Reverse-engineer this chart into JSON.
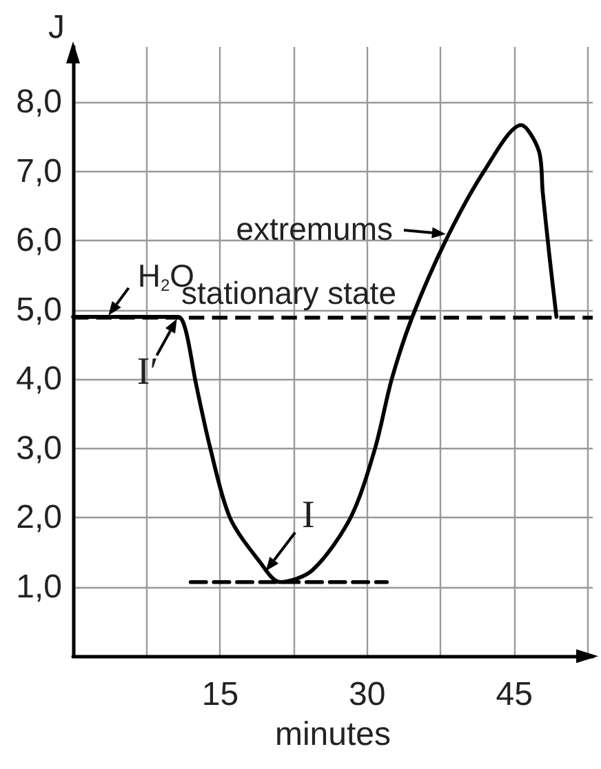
{
  "chart_data": {
    "type": "line",
    "xlabel": "minutes",
    "ylabel": "J",
    "xlim": [
      0,
      53
    ],
    "xticks": [
      {
        "value": 7.5,
        "label": null
      },
      15,
      {
        "value": 22.5,
        "label": null
      },
      30,
      {
        "value": 37.5,
        "label": null
      },
      45,
      {
        "value": 52.5,
        "label": null
      }
    ],
    "ylim": [
      0,
      8.8
    ],
    "yticks": [
      {
        "value": 1,
        "label": "1,0"
      },
      {
        "value": 2,
        "label": "2,0"
      },
      {
        "value": 3,
        "label": "3,0"
      },
      {
        "value": 4,
        "label": "4,0"
      },
      {
        "value": 5,
        "label": "5,0"
      },
      {
        "value": 6,
        "label": "6,0"
      },
      {
        "value": 7,
        "label": "7,0"
      },
      {
        "value": 8,
        "label": "8,0"
      }
    ],
    "grid": true,
    "marker": "none",
    "line_style": "solid",
    "series": [
      {
        "color": "#000000",
        "x": [
          0,
          10.7,
          11.5,
          12.5,
          14.0,
          16.0,
          19.0,
          21.1,
          24.4,
          28.3,
          30.8,
          32.5,
          34.6,
          38.0,
          41.9,
          45.7,
          47.5,
          47.9,
          48.6,
          49.3
        ],
        "values": [
          4.9,
          4.9,
          4.7,
          3.96,
          3.0,
          2.0,
          1.37,
          1.07,
          1.24,
          2.0,
          3.0,
          4.0,
          4.9,
          6.0,
          7.0,
          7.67,
          7.3,
          6.7,
          5.76,
          4.9
        ]
      },
      {
        "color": "#000000",
        "line_style": "dashed",
        "x": [
          12.0,
          32.0
        ],
        "values": [
          1.07,
          1.07
        ]
      }
    ],
    "ref_lines": [
      {
        "axis": "y",
        "value": 4.9,
        "label": "stationary state",
        "color": "#000000",
        "line_style": "dashed"
      }
    ],
    "annotations": [
      "extremums",
      {
        "text": "H$_{2}$O",
        "x": 3.5,
        "y": 4.9
      },
      {
        "text": "I′",
        "x": 10.7,
        "y": 4.9
      },
      {
        "text": "I",
        "x": 19.5,
        "y": 1.2
      }
    ]
  }
}
